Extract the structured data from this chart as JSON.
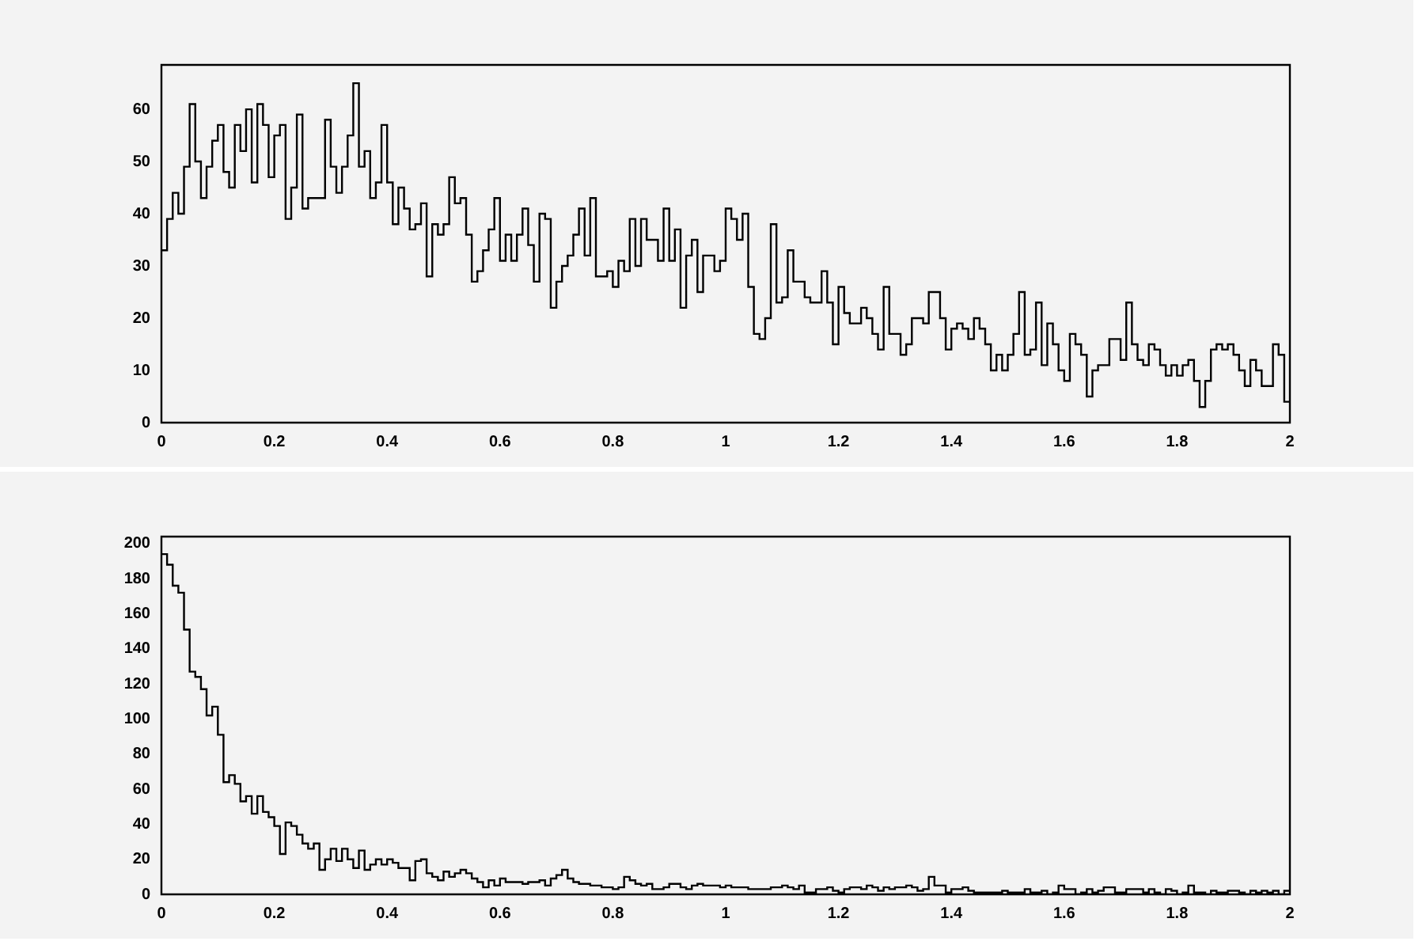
{
  "chart_data": [
    {
      "type": "histogram",
      "color": "#000000",
      "xlim": [
        0,
        2
      ],
      "ylim": [
        0,
        68.5
      ],
      "xticks": [
        0,
        0.2,
        0.4,
        0.6,
        0.8,
        1,
        1.2,
        1.4,
        1.6,
        1.8,
        2
      ],
      "yticks": [
        0,
        10,
        20,
        30,
        40,
        50,
        60
      ],
      "bins": [
        0,
        0.01,
        0.02,
        0.03,
        0.04,
        0.05,
        0.06,
        0.07,
        0.08,
        0.09,
        0.1,
        0.11,
        0.12,
        0.13,
        0.14,
        0.15,
        0.16,
        0.17,
        0.18,
        0.19,
        0.2,
        0.21,
        0.22,
        0.23,
        0.24,
        0.25,
        0.26,
        0.27,
        0.28,
        0.29,
        0.3,
        0.31,
        0.32,
        0.33,
        0.34,
        0.35,
        0.36,
        0.37,
        0.38,
        0.39,
        0.4,
        0.41,
        0.42,
        0.43,
        0.44,
        0.45,
        0.46,
        0.47,
        0.48,
        0.49,
        0.5,
        0.51,
        0.52,
        0.53,
        0.54,
        0.55,
        0.56,
        0.57,
        0.58,
        0.59,
        0.6,
        0.61,
        0.62,
        0.63,
        0.64,
        0.65,
        0.66,
        0.67,
        0.68,
        0.69,
        0.7,
        0.71,
        0.72,
        0.73,
        0.74,
        0.75,
        0.76,
        0.77,
        0.78,
        0.79,
        0.8,
        0.81,
        0.82,
        0.83,
        0.84,
        0.85,
        0.86,
        0.87,
        0.88,
        0.89,
        0.9,
        0.91,
        0.92,
        0.93,
        0.94,
        0.95,
        0.96,
        0.97,
        0.98,
        0.99,
        1,
        1.01,
        1.02,
        1.03,
        1.04,
        1.05,
        1.06,
        1.07,
        1.08,
        1.09,
        1.1,
        1.11,
        1.12,
        1.13,
        1.14,
        1.15,
        1.16,
        1.17,
        1.18,
        1.19,
        1.2,
        1.21,
        1.22,
        1.23,
        1.24,
        1.25,
        1.26,
        1.27,
        1.28,
        1.29,
        1.3,
        1.31,
        1.32,
        1.33,
        1.34,
        1.35,
        1.36,
        1.37,
        1.38,
        1.39,
        1.4,
        1.41,
        1.42,
        1.43,
        1.44,
        1.45,
        1.46,
        1.47,
        1.48,
        1.49,
        1.5,
        1.51,
        1.52,
        1.53,
        1.54,
        1.55,
        1.56,
        1.57,
        1.58,
        1.59,
        1.6,
        1.61,
        1.62,
        1.63,
        1.64,
        1.65,
        1.66,
        1.67,
        1.68,
        1.69,
        1.7,
        1.71,
        1.72,
        1.73,
        1.74,
        1.75,
        1.76,
        1.77,
        1.78,
        1.79,
        1.8,
        1.81,
        1.82,
        1.83,
        1.84,
        1.85,
        1.86,
        1.87,
        1.88,
        1.89,
        1.9,
        1.91,
        1.92,
        1.93,
        1.94,
        1.95,
        1.96,
        1.97,
        1.98,
        1.99,
        2
      ],
      "values": [
        33,
        39,
        44,
        40,
        49,
        61,
        50,
        43,
        49,
        54,
        57,
        48,
        45,
        57,
        52,
        60,
        46,
        61,
        57,
        47,
        55,
        57,
        39,
        45,
        59,
        41,
        43,
        43,
        43,
        58,
        49,
        44,
        49,
        55,
        65,
        49,
        52,
        43,
        46,
        57,
        46,
        38,
        45,
        41,
        37,
        38,
        42,
        28,
        38,
        36,
        38,
        47,
        42,
        43,
        36,
        27,
        29,
        33,
        37,
        43,
        31,
        36,
        31,
        36,
        41,
        34,
        27,
        40,
        39,
        22,
        27,
        30,
        32,
        36,
        41,
        32,
        43,
        28,
        28,
        29,
        26,
        31,
        29,
        39,
        30,
        39,
        35,
        35,
        31,
        41,
        31,
        37,
        22,
        32,
        35,
        25,
        32,
        32,
        29,
        31,
        41,
        39,
        35,
        40,
        26,
        17,
        16,
        20,
        38,
        23,
        24,
        33,
        27,
        27,
        24,
        23,
        23,
        29,
        23,
        15,
        26,
        21,
        19,
        19,
        22,
        20,
        17,
        14,
        26,
        17,
        17,
        13,
        15,
        20,
        20,
        19,
        25,
        25,
        20,
        14,
        18,
        19,
        18,
        16,
        20,
        18,
        15,
        10,
        13,
        10,
        13,
        17,
        25,
        13,
        14,
        23,
        11,
        19,
        15,
        10,
        8,
        17,
        15,
        13,
        5,
        10,
        11,
        11,
        16,
        16,
        12,
        23,
        15,
        12,
        11,
        15,
        14,
        11,
        9,
        11,
        9,
        11,
        12,
        8,
        3,
        8,
        14,
        15,
        14,
        15,
        13,
        10,
        7,
        12,
        10,
        7,
        7,
        15,
        13,
        4
      ]
    },
    {
      "type": "histogram",
      "color": "#000000",
      "xlim": [
        0,
        2
      ],
      "ylim": [
        0,
        204
      ],
      "xticks": [
        0,
        0.2,
        0.4,
        0.6,
        0.8,
        1,
        1.2,
        1.4,
        1.6,
        1.8,
        2
      ],
      "yticks": [
        0,
        20,
        40,
        60,
        80,
        100,
        120,
        140,
        160,
        180,
        200
      ],
      "bins": [
        0,
        0.01,
        0.02,
        0.03,
        0.04,
        0.05,
        0.06,
        0.07,
        0.08,
        0.09,
        0.1,
        0.11,
        0.12,
        0.13,
        0.14,
        0.15,
        0.16,
        0.17,
        0.18,
        0.19,
        0.2,
        0.21,
        0.22,
        0.23,
        0.24,
        0.25,
        0.26,
        0.27,
        0.28,
        0.29,
        0.3,
        0.31,
        0.32,
        0.33,
        0.34,
        0.35,
        0.36,
        0.37,
        0.38,
        0.39,
        0.4,
        0.41,
        0.42,
        0.43,
        0.44,
        0.45,
        0.46,
        0.47,
        0.48,
        0.49,
        0.5,
        0.51,
        0.52,
        0.53,
        0.54,
        0.55,
        0.56,
        0.57,
        0.58,
        0.59,
        0.6,
        0.61,
        0.62,
        0.63,
        0.64,
        0.65,
        0.66,
        0.67,
        0.68,
        0.69,
        0.7,
        0.71,
        0.72,
        0.73,
        0.74,
        0.75,
        0.76,
        0.77,
        0.78,
        0.79,
        0.8,
        0.81,
        0.82,
        0.83,
        0.84,
        0.85,
        0.86,
        0.87,
        0.88,
        0.89,
        0.9,
        0.91,
        0.92,
        0.93,
        0.94,
        0.95,
        0.96,
        0.97,
        0.98,
        0.99,
        1,
        1.01,
        1.02,
        1.03,
        1.04,
        1.05,
        1.06,
        1.07,
        1.08,
        1.09,
        1.1,
        1.11,
        1.12,
        1.13,
        1.14,
        1.15,
        1.16,
        1.17,
        1.18,
        1.19,
        1.2,
        1.21,
        1.22,
        1.23,
        1.24,
        1.25,
        1.26,
        1.27,
        1.28,
        1.29,
        1.3,
        1.31,
        1.32,
        1.33,
        1.34,
        1.35,
        1.36,
        1.37,
        1.38,
        1.39,
        1.4,
        1.41,
        1.42,
        1.43,
        1.44,
        1.45,
        1.46,
        1.47,
        1.48,
        1.49,
        1.5,
        1.51,
        1.52,
        1.53,
        1.54,
        1.55,
        1.56,
        1.57,
        1.58,
        1.59,
        1.6,
        1.61,
        1.62,
        1.63,
        1.64,
        1.65,
        1.66,
        1.67,
        1.68,
        1.69,
        1.7,
        1.71,
        1.72,
        1.73,
        1.74,
        1.75,
        1.76,
        1.77,
        1.78,
        1.79,
        1.8,
        1.81,
        1.82,
        1.83,
        1.84,
        1.85,
        1.86,
        1.87,
        1.88,
        1.89,
        1.9,
        1.91,
        1.92,
        1.93,
        1.94,
        1.95,
        1.96,
        1.97,
        1.98,
        1.99,
        2
      ],
      "values": [
        194,
        188,
        176,
        172,
        151,
        127,
        124,
        117,
        102,
        107,
        91,
        64,
        68,
        63,
        53,
        56,
        46,
        56,
        47,
        44,
        39,
        23,
        41,
        39,
        34,
        29,
        26,
        29,
        14,
        20,
        26,
        19,
        26,
        20,
        15,
        25,
        14,
        17,
        20,
        17,
        20,
        18,
        15,
        15,
        8,
        19,
        20,
        12,
        10,
        8,
        13,
        10,
        12,
        14,
        12,
        9,
        7,
        4,
        8,
        5,
        9,
        7,
        7,
        7,
        6,
        7,
        7,
        8,
        5,
        9,
        11,
        14,
        9,
        7,
        6,
        6,
        5,
        5,
        4,
        4,
        3,
        4,
        10,
        8,
        6,
        5,
        6,
        3,
        3,
        4,
        6,
        6,
        4,
        3,
        5,
        6,
        5,
        5,
        5,
        4,
        5,
        4,
        4,
        4,
        3,
        3,
        3,
        3,
        4,
        4,
        5,
        4,
        3,
        5,
        1,
        1,
        3,
        3,
        4,
        2,
        1,
        3,
        4,
        4,
        3,
        5,
        4,
        2,
        4,
        3,
        4,
        4,
        5,
        4,
        2,
        3,
        10,
        5,
        5,
        1,
        3,
        3,
        4,
        2,
        1,
        1,
        1,
        1,
        1,
        2,
        1,
        1,
        1,
        3,
        1,
        1,
        2,
        0,
        1,
        5,
        3,
        3,
        0,
        1,
        3,
        1,
        2,
        4,
        4,
        1,
        1,
        3,
        3,
        3,
        1,
        3,
        1,
        0,
        3,
        2,
        0,
        1,
        5,
        1,
        1,
        0,
        2,
        1,
        1,
        2,
        2,
        1,
        0,
        2,
        1,
        2,
        1,
        2,
        0,
        2
      ]
    }
  ]
}
